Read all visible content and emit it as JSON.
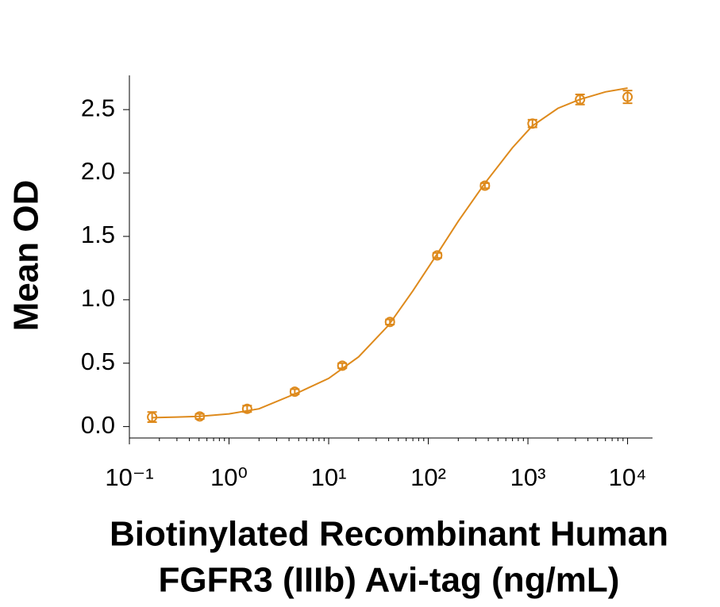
{
  "chart_data": {
    "type": "scatter",
    "ylabel": "Mean OD",
    "xlabel": [
      "Biotinylated Recombinant Human",
      "FGFR3 (IIIb) Avi-tag (ng/mL)"
    ],
    "xscale": "log",
    "color": "#de8a1c",
    "xlim": [
      0.1,
      17800
    ],
    "ylim": [
      -0.09,
      2.77
    ],
    "xticks": [
      {
        "value": 0.1,
        "label": "10⁻¹"
      },
      {
        "value": 1,
        "label": "10⁰"
      },
      {
        "value": 10,
        "label": "10¹"
      },
      {
        "value": 100,
        "label": "10²"
      },
      {
        "value": 1000,
        "label": "10³"
      },
      {
        "value": 10000,
        "label": "10⁴"
      }
    ],
    "xminorticks": [
      0.2,
      0.3,
      0.4,
      0.5,
      0.6,
      0.7,
      0.8,
      0.9,
      2,
      3,
      4,
      5,
      6,
      7,
      8,
      9,
      20,
      30,
      40,
      50,
      60,
      70,
      80,
      90,
      200,
      300,
      400,
      500,
      600,
      700,
      800,
      900,
      2000,
      3000,
      4000,
      5000,
      6000,
      7000,
      8000,
      9000
    ],
    "yticks": [
      {
        "value": 0,
        "label": "0.0"
      },
      0.5,
      {
        "value": 1,
        "label": "1.0"
      },
      1.5,
      {
        "value": 2,
        "label": "2.0"
      },
      2.5
    ],
    "x": [
      0.169,
      0.508,
      1.52,
      4.57,
      13.7,
      41.2,
      123,
      370,
      1111,
      3333,
      10000
    ],
    "values": [
      0.075,
      0.08,
      0.14,
      0.275,
      0.48,
      0.825,
      1.35,
      1.9,
      2.39,
      2.58,
      2.6
    ],
    "errors": [
      0.04,
      0.02,
      0.025,
      0.02,
      0.02,
      0.02,
      0.02,
      0.02,
      0.03,
      0.04,
      0.05
    ],
    "fit": {
      "x": [
        0.17,
        0.3,
        0.5,
        1,
        2,
        5,
        10,
        20,
        40,
        70,
        120,
        200,
        370,
        700,
        1100,
        2000,
        3300,
        6000,
        10000
      ],
      "values": [
        0.07,
        0.075,
        0.08,
        0.1,
        0.14,
        0.27,
        0.38,
        0.55,
        0.8,
        1.07,
        1.35,
        1.62,
        1.92,
        2.2,
        2.37,
        2.51,
        2.58,
        2.64,
        2.67
      ]
    }
  }
}
